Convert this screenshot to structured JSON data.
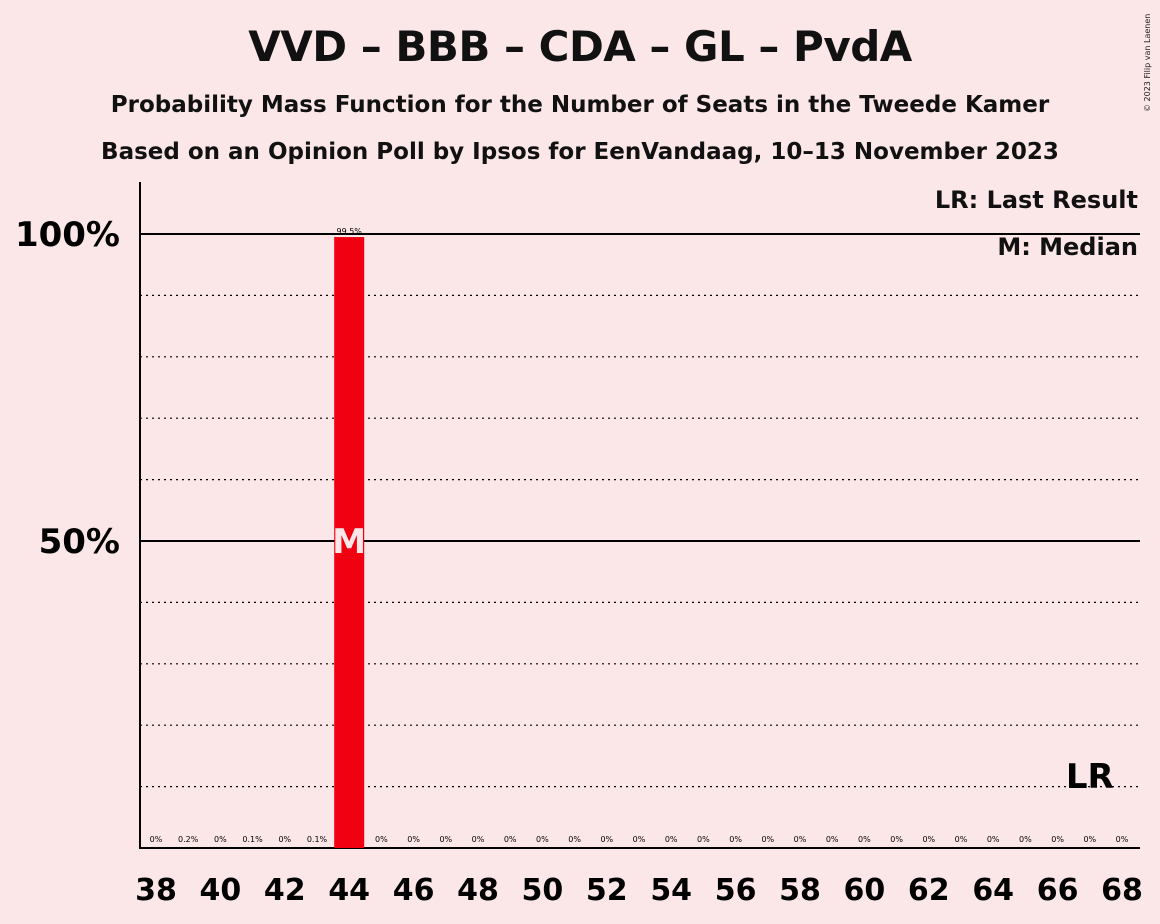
{
  "title": "VVD – BBB – CDA – GL – PvdA",
  "subtitle": "Probability Mass Function for the Number of Seats in the Tweede Kamer",
  "subtitle2": "Based on an Opinion Poll by Ipsos for EenVandaag, 10–13 November 2023",
  "copyright": "© 2023 Filip van Laenen",
  "legend": {
    "last_result": "LR: Last Result",
    "median": "M: Median"
  },
  "colors": {
    "background": "#fbe6e8",
    "bar": "#f00010",
    "median_text": "#fbe6e8"
  },
  "chart_data": {
    "type": "bar",
    "x": [
      38,
      39,
      40,
      41,
      42,
      43,
      44,
      45,
      46,
      47,
      48,
      49,
      50,
      51,
      52,
      53,
      54,
      55,
      56,
      57,
      58,
      59,
      60,
      61,
      62,
      63,
      64,
      65,
      66,
      67,
      68
    ],
    "values": [
      0,
      0.2,
      0,
      0.1,
      0,
      0.1,
      99.5,
      0,
      0,
      0,
      0,
      0,
      0,
      0,
      0,
      0,
      0,
      0,
      0,
      0,
      0,
      0,
      0,
      0,
      0,
      0,
      0,
      0,
      0,
      0,
      0
    ],
    "value_labels": [
      "0%",
      "0.2%",
      "0%",
      "0.1%",
      "0%",
      "0.1%",
      "99.5%",
      "0%",
      "0%",
      "0%",
      "0%",
      "0%",
      "0%",
      "0%",
      "0%",
      "0%",
      "0%",
      "0%",
      "0%",
      "0%",
      "0%",
      "0%",
      "0%",
      "0%",
      "0%",
      "0%",
      "0%",
      "0%",
      "0%",
      "0%",
      "0%"
    ],
    "x_tick_labels": [
      "38",
      "40",
      "42",
      "44",
      "46",
      "48",
      "50",
      "52",
      "54",
      "56",
      "58",
      "60",
      "62",
      "64",
      "66",
      "68"
    ],
    "y_tick_labels": [
      "100%",
      "50%"
    ],
    "ylim": [
      0,
      100
    ],
    "median_seat": 44,
    "median_marker": "M",
    "last_result_seat": 67,
    "last_result_marker": "LR",
    "grid": "dotted every 10%, solid at 50% and 100%"
  }
}
